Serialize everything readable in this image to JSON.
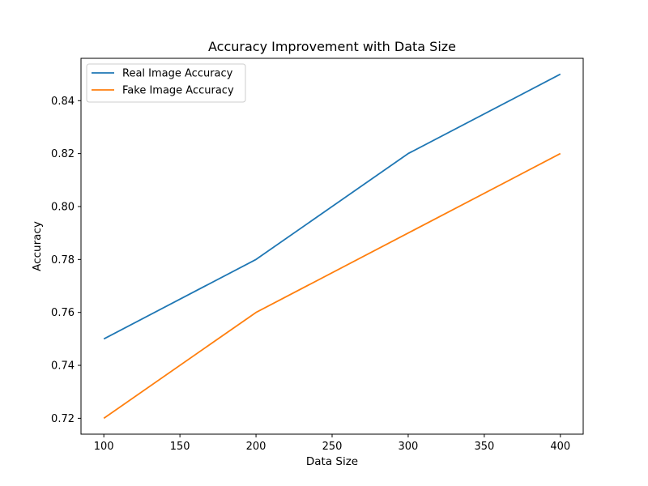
{
  "chart_data": {
    "type": "line",
    "title": "Accuracy Improvement with Data Size",
    "xlabel": "Data Size",
    "ylabel": "Accuracy",
    "x": [
      100,
      200,
      300,
      400
    ],
    "xlim": [
      85,
      415
    ],
    "ylim": [
      0.714,
      0.856
    ],
    "xticks": [
      100,
      150,
      200,
      250,
      300,
      350,
      400
    ],
    "yticks": [
      0.72,
      0.74,
      0.76,
      0.78,
      0.8,
      0.82,
      0.84
    ],
    "xtick_labels": [
      "100",
      "150",
      "200",
      "250",
      "300",
      "350",
      "400"
    ],
    "ytick_labels": [
      "0.72",
      "0.74",
      "0.76",
      "0.78",
      "0.80",
      "0.82",
      "0.84"
    ],
    "grid": false,
    "legend_position": "top-left",
    "series": [
      {
        "name": "Real Image Accuracy",
        "color": "#1f77b4",
        "values": [
          0.75,
          0.78,
          0.82,
          0.85
        ]
      },
      {
        "name": "Fake Image Accuracy",
        "color": "#ff7f0e",
        "values": [
          0.72,
          0.76,
          0.79,
          0.82
        ]
      }
    ]
  }
}
